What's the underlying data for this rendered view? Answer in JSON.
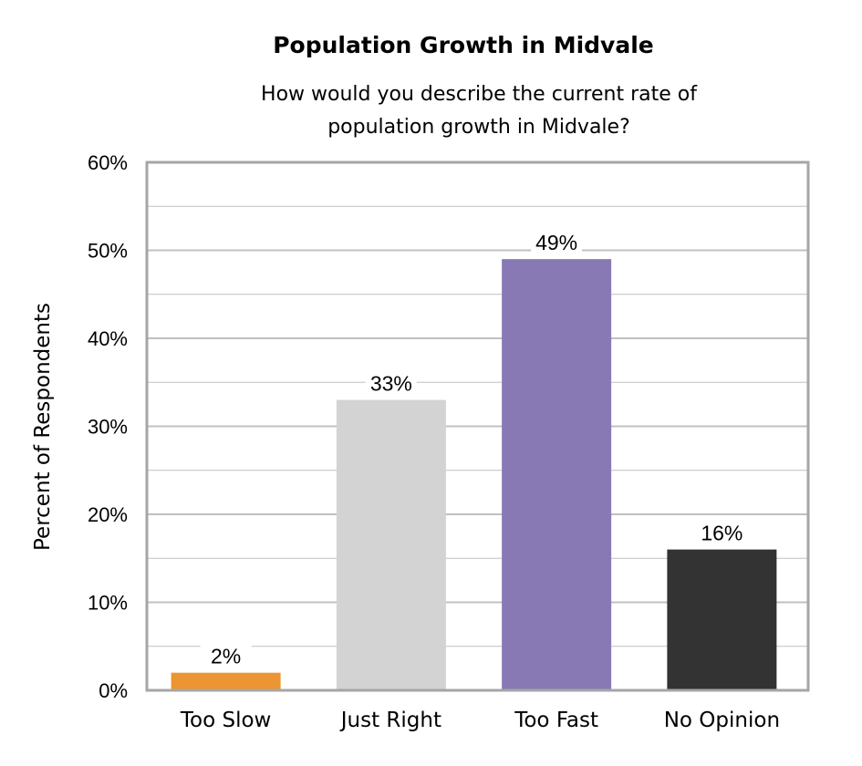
{
  "chart_data": {
    "type": "bar",
    "title": "Population Growth in Midvale",
    "subtitle": [
      "How would you describe the current rate of",
      "population growth in Midvale?"
    ],
    "xlabel": "",
    "ylabel": "Percent of Respondents",
    "categories": [
      "Too Slow",
      "Just Right",
      "Too Fast",
      "No Opinion"
    ],
    "values": [
      2,
      33,
      49,
      16
    ],
    "data_labels": [
      "2%",
      "33%",
      "49%",
      "16%"
    ],
    "colors": [
      "#EC9533",
      "#D3D3D3",
      "#8879B5",
      "#333333"
    ],
    "ylim": [
      0,
      60
    ],
    "yticks": [
      0,
      10,
      20,
      30,
      40,
      50,
      60
    ],
    "ytick_labels": [
      "0%",
      "10%",
      "20%",
      "30%",
      "40%",
      "50%",
      "60%"
    ],
    "grid": "horizontal, major every 10%, minor every 5%",
    "legend": "none",
    "frame_color": "#A6A6A6",
    "grid_color": "#C0C0C0"
  }
}
